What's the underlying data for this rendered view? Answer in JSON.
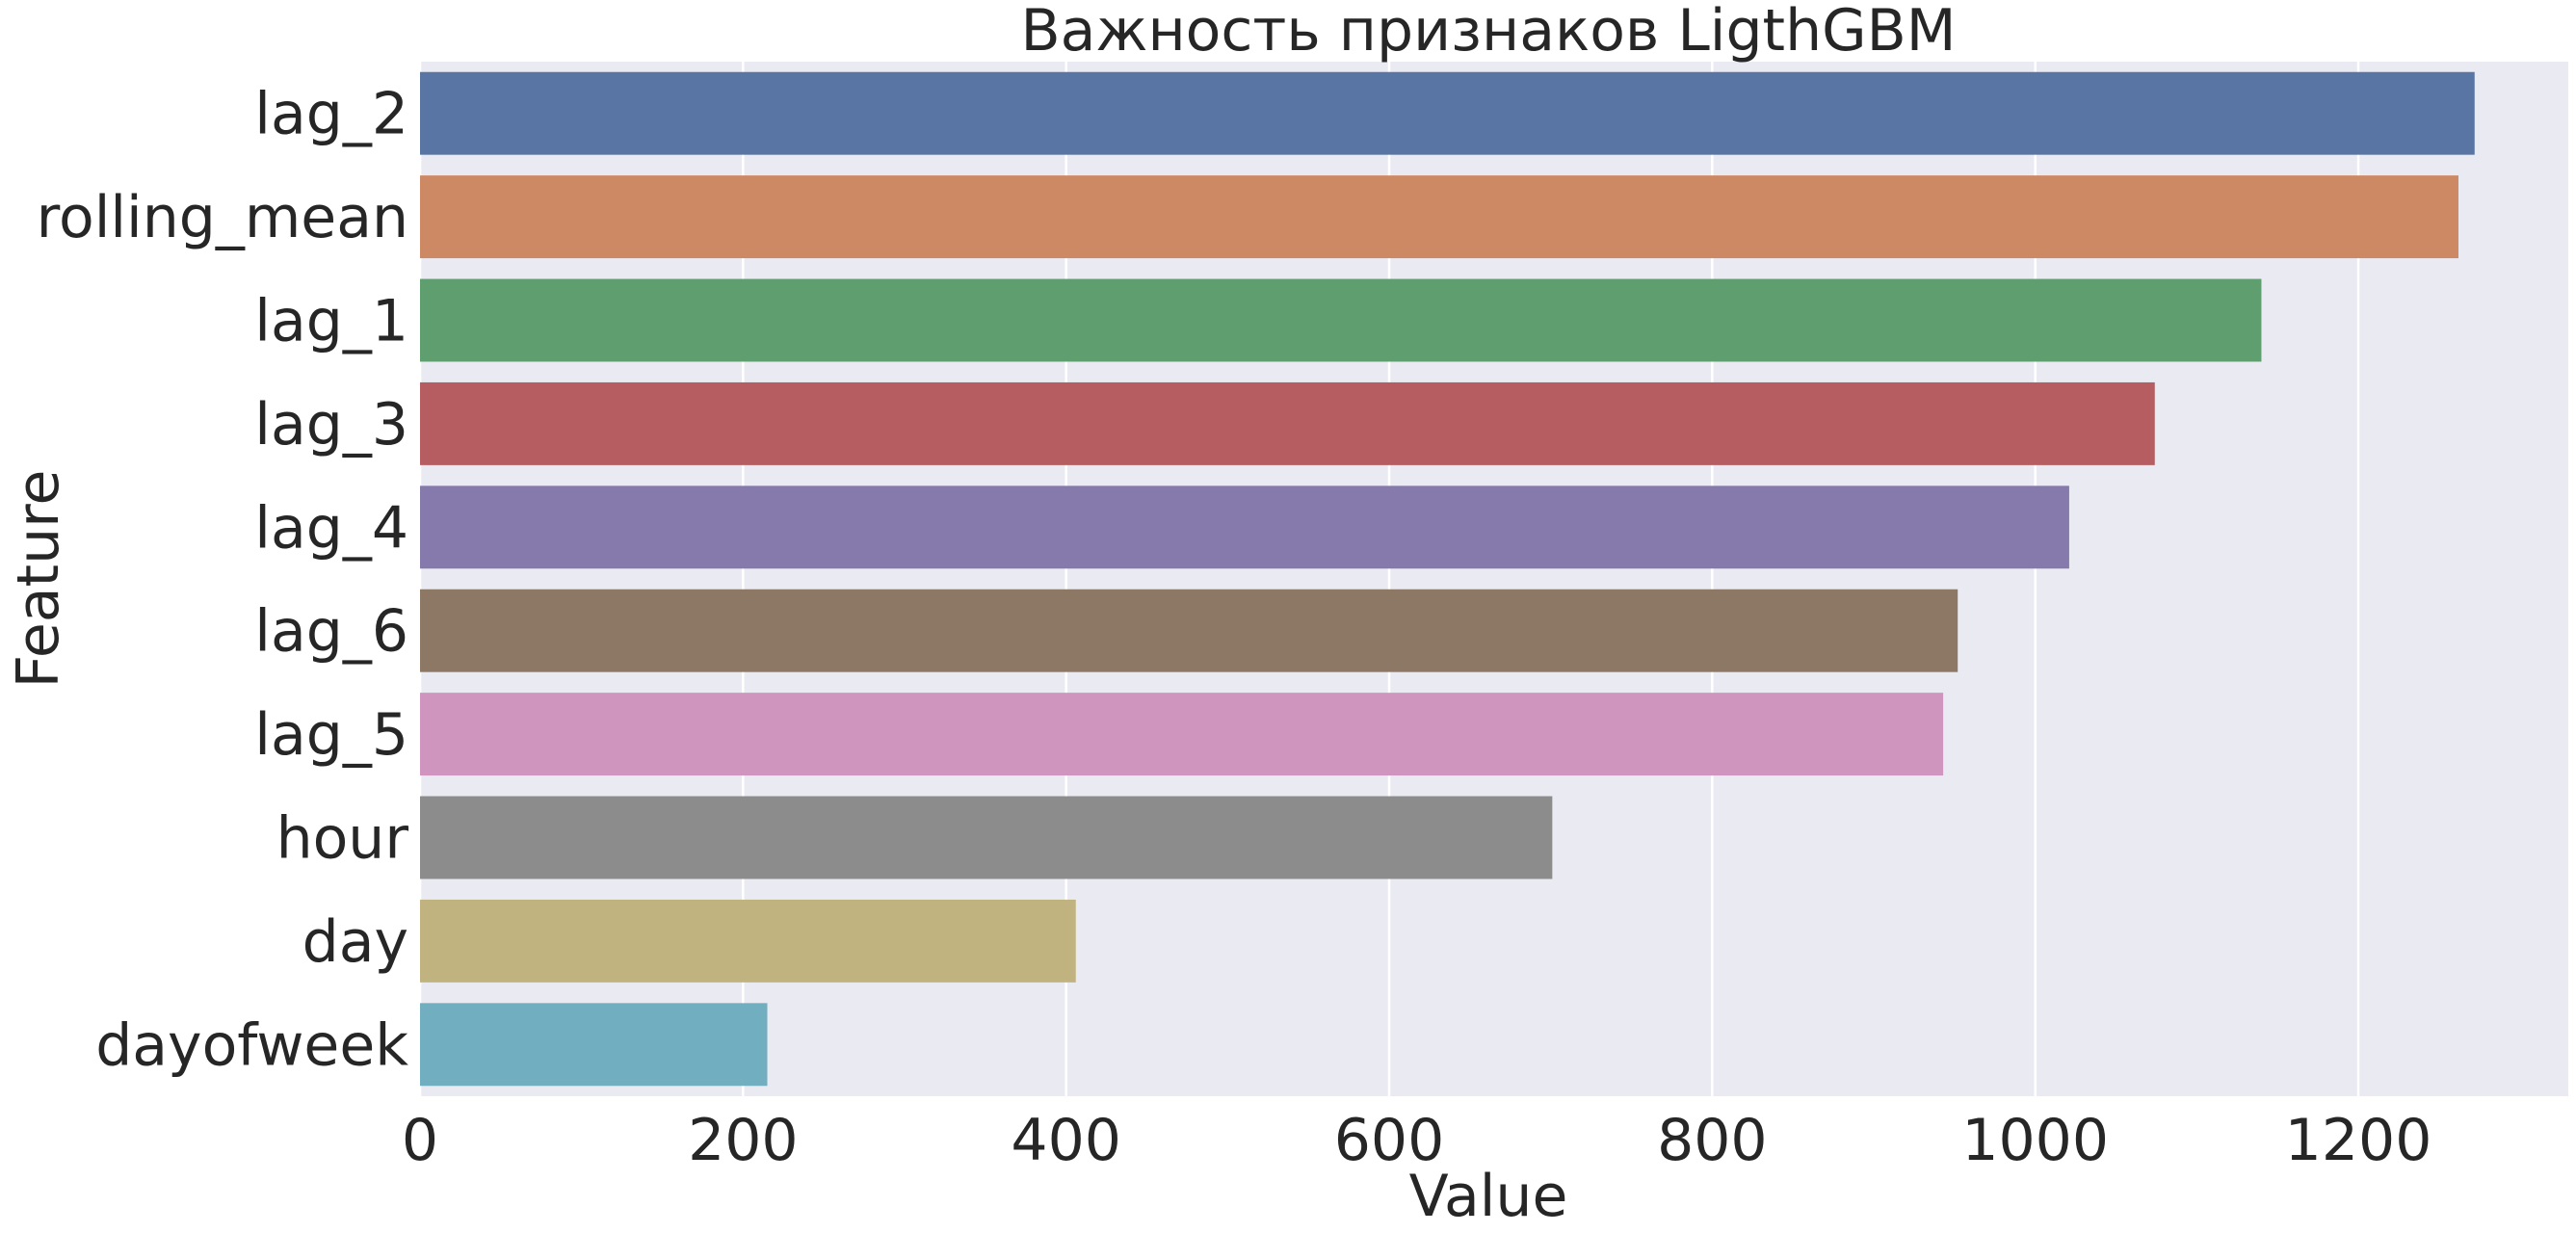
{
  "chart_data": {
    "type": "bar",
    "orientation": "horizontal",
    "title": "Важность признаков LigthGBM",
    "xlabel": "Value",
    "ylabel": "Feature",
    "xlim": [
      0,
      1330
    ],
    "xticks": [
      0,
      200,
      400,
      600,
      800,
      1000,
      1200
    ],
    "grid": true,
    "categories": [
      "lag_2",
      "rolling_mean",
      "lag_1",
      "lag_3",
      "lag_4",
      "lag_6",
      "lag_5",
      "hour",
      "day",
      "dayofweek"
    ],
    "values": [
      1272,
      1262,
      1140,
      1074,
      1021,
      952,
      943,
      701,
      406,
      215
    ],
    "colors": [
      "#5875a4",
      "#cc8963",
      "#5f9e6e",
      "#b55d60",
      "#857aab",
      "#8d7866",
      "#d095bf",
      "#8c8c8c",
      "#c1b37f",
      "#71aec0"
    ],
    "background": "#eaeaf2"
  }
}
